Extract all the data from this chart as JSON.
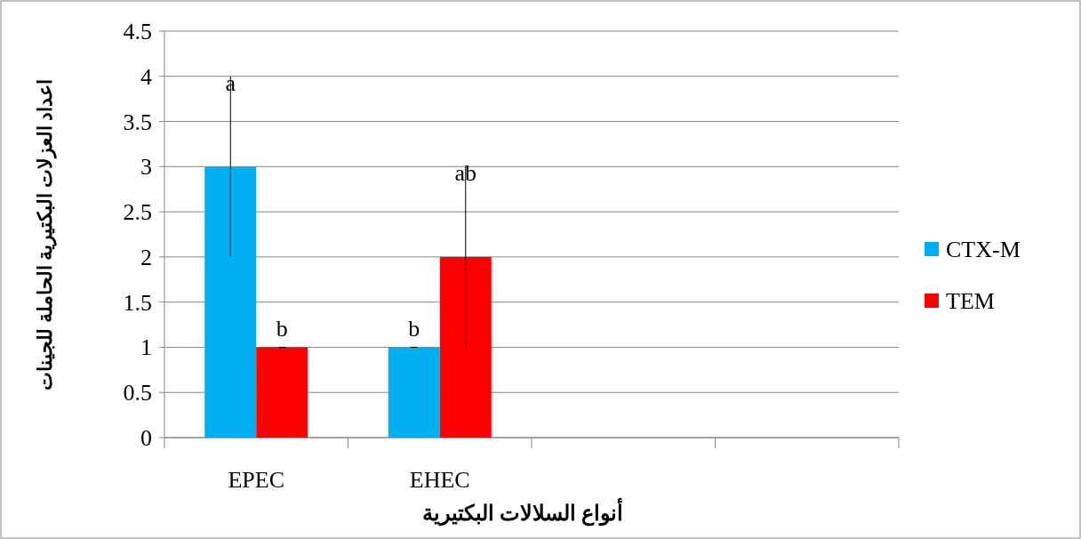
{
  "chart_data": {
    "type": "bar",
    "xlabel": "أنواع السلالات البكتيرية",
    "ylabel": "اعداد العزلات البكتيرية الحاملة للجينات",
    "categories": [
      "EPEC",
      "EHEC",
      null,
      null
    ],
    "ylim": [
      0,
      4.5
    ],
    "yticks": [
      0,
      0.5,
      1,
      1.5,
      2,
      2.5,
      3,
      3.5,
      4,
      4.5
    ],
    "grid": "y",
    "legend": "right",
    "series": [
      {
        "name": "CTX-M",
        "color": "#00b0f0",
        "values": [
          3,
          1,
          null,
          null
        ],
        "errors": [
          1,
          0,
          null,
          null
        ],
        "value_labels": [
          "a",
          "b",
          null,
          null
        ]
      },
      {
        "name": "TEM",
        "color": "#ff0000",
        "values": [
          1,
          2,
          null,
          null
        ],
        "errors": [
          0,
          1,
          null,
          null
        ],
        "value_labels": [
          "b",
          "ab",
          null,
          null
        ]
      }
    ]
  }
}
